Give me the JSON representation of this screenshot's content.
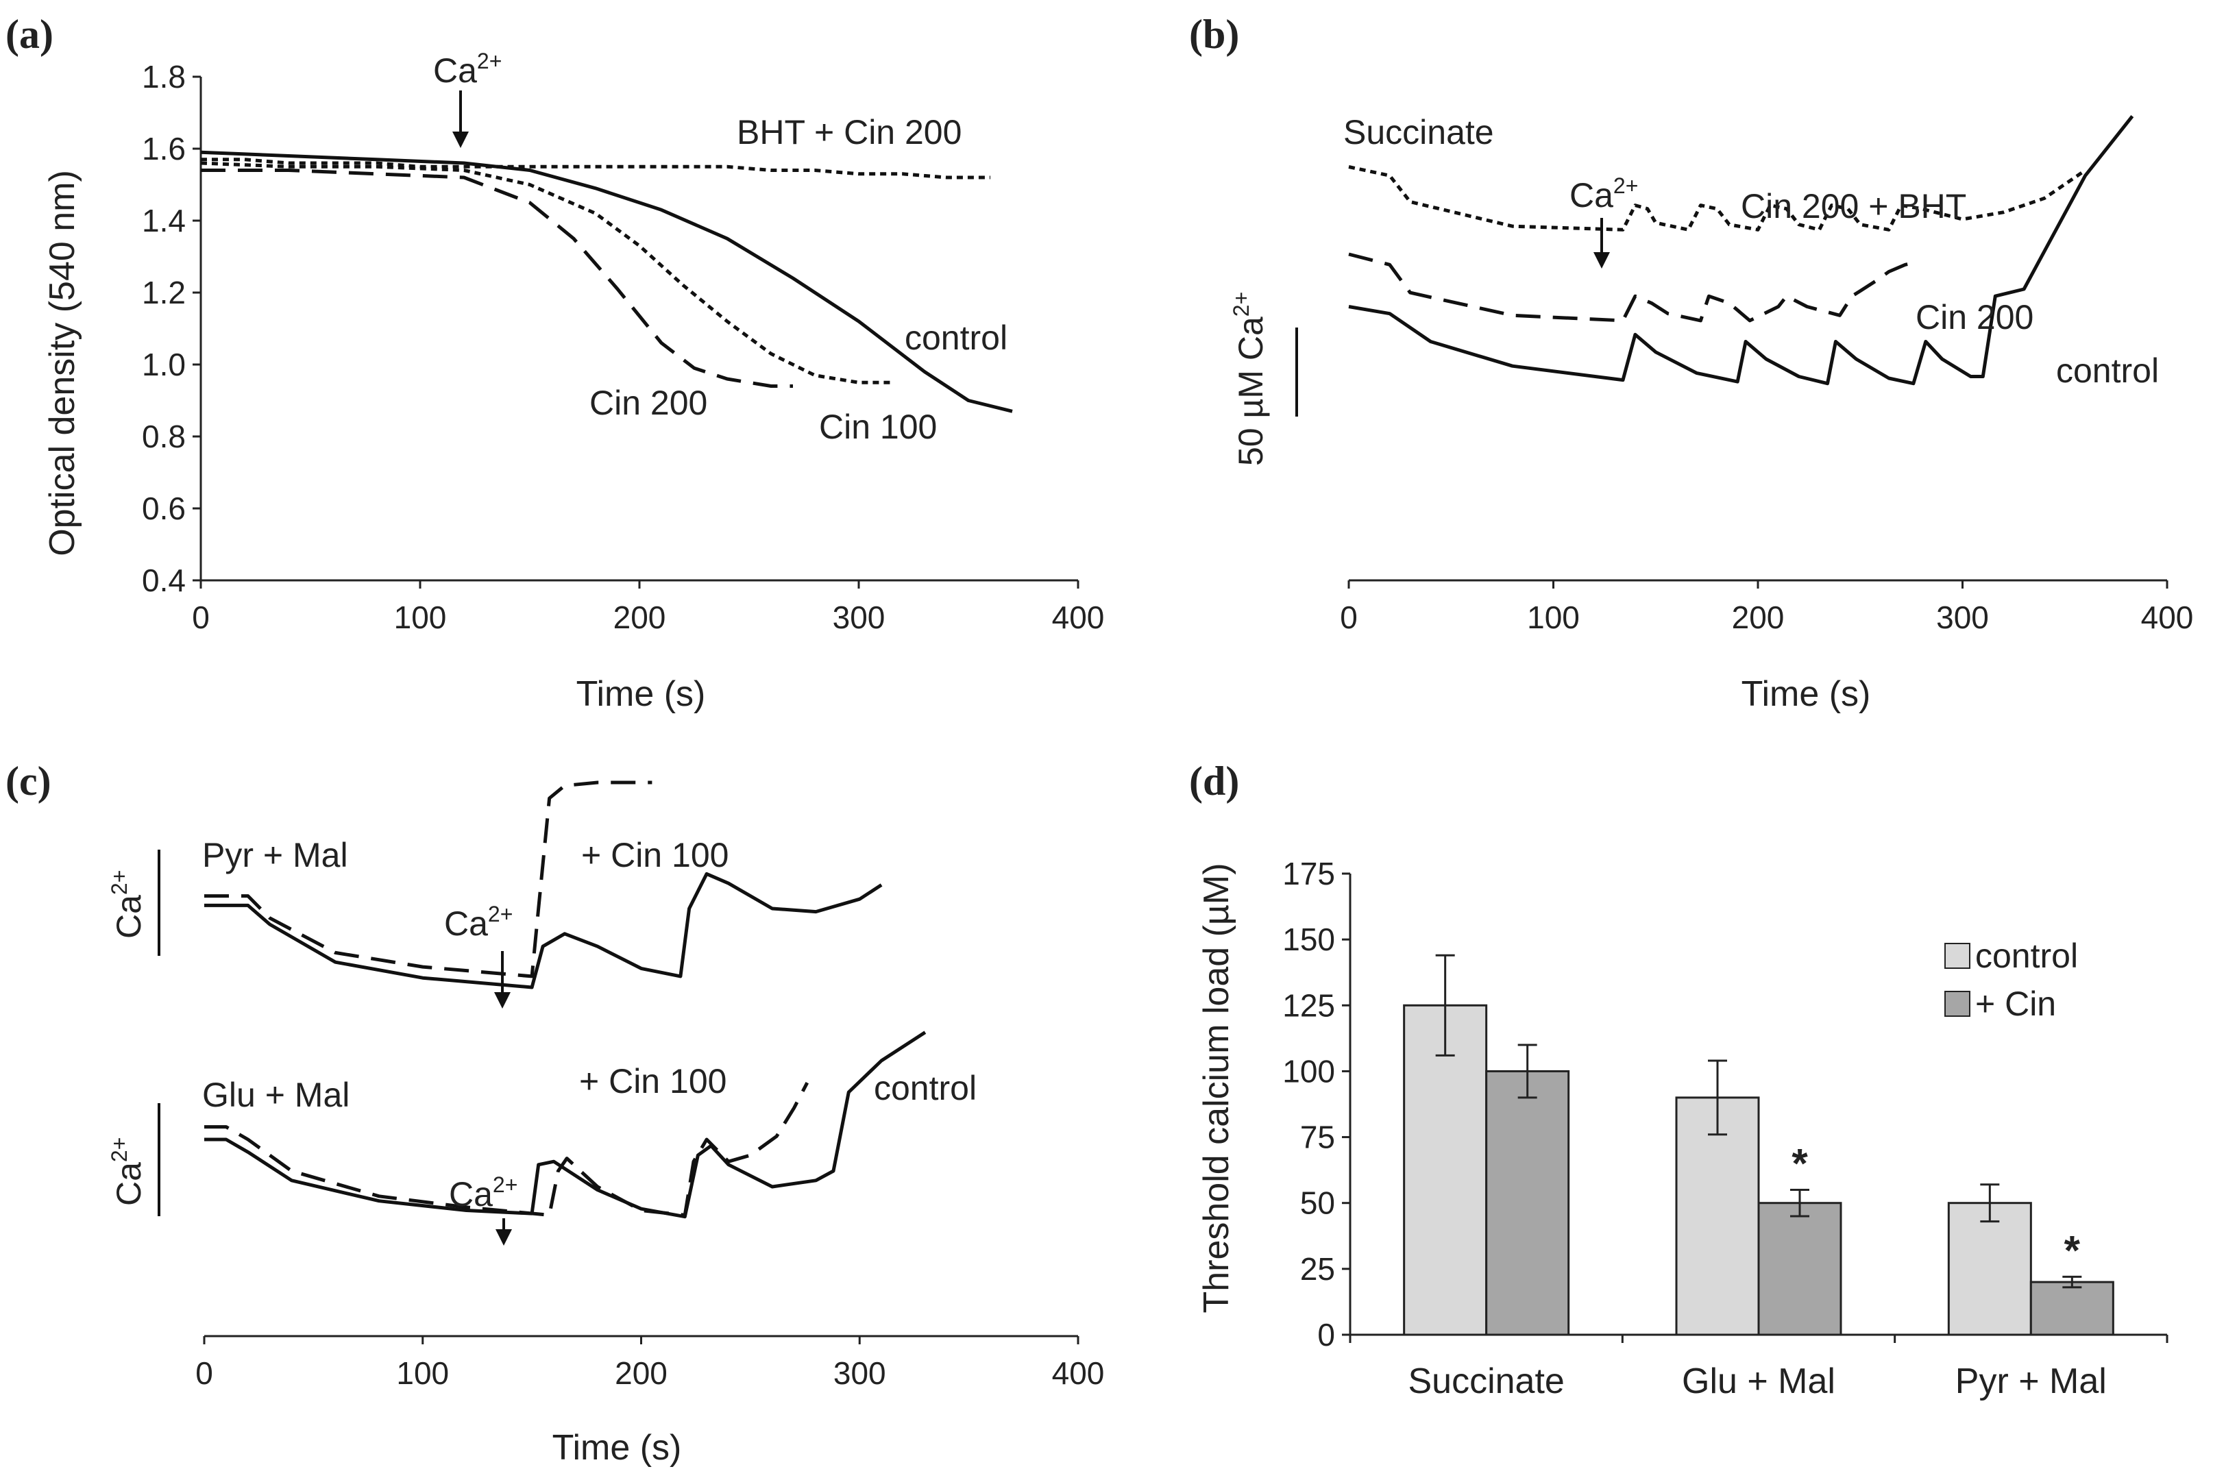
{
  "chart_data": [
    {
      "panel": "(a)",
      "type": "line",
      "xlabel": "Time (s)",
      "ylabel": "Optical density (540 nm)",
      "xlim": [
        0,
        400
      ],
      "ylim": [
        0.4,
        1.8
      ],
      "xticks": [
        "0",
        "100",
        "200",
        "300",
        "400"
      ],
      "yticks": [
        "0.4",
        "0.6",
        "0.8",
        "1.0",
        "1.2",
        "1.4",
        "1.6",
        "1.8"
      ],
      "annotations": {
        "ca": "Ca",
        "ca_sup": "2+"
      },
      "series": [
        {
          "name": "BHT + Cin 200",
          "style": "dotted",
          "x": [
            0,
            20,
            40,
            60,
            80,
            100,
            120,
            140,
            160,
            180,
            200,
            220,
            240,
            260,
            280,
            300,
            320,
            340,
            360
          ],
          "y": [
            1.57,
            1.57,
            1.56,
            1.56,
            1.56,
            1.55,
            1.55,
            1.55,
            1.55,
            1.55,
            1.55,
            1.55,
            1.55,
            1.54,
            1.54,
            1.53,
            1.53,
            1.52,
            1.52
          ]
        },
        {
          "name": "control",
          "style": "solid",
          "x": [
            0,
            40,
            80,
            120,
            150,
            180,
            210,
            240,
            270,
            300,
            330,
            350,
            370
          ],
          "y": [
            1.59,
            1.58,
            1.57,
            1.56,
            1.54,
            1.49,
            1.43,
            1.35,
            1.24,
            1.12,
            0.98,
            0.9,
            0.87
          ]
        },
        {
          "name": "Cin 100",
          "style": "dotted",
          "x": [
            0,
            40,
            80,
            120,
            150,
            180,
            200,
            220,
            240,
            260,
            280,
            300,
            315
          ],
          "y": [
            1.56,
            1.55,
            1.55,
            1.54,
            1.5,
            1.42,
            1.33,
            1.22,
            1.12,
            1.03,
            0.97,
            0.95,
            0.95
          ]
        },
        {
          "name": "Cin 200",
          "style": "dashed",
          "x": [
            0,
            40,
            80,
            120,
            150,
            170,
            190,
            210,
            225,
            240,
            260,
            270
          ],
          "y": [
            1.54,
            1.54,
            1.53,
            1.52,
            1.45,
            1.35,
            1.21,
            1.06,
            0.99,
            0.96,
            0.94,
            0.94
          ]
        }
      ]
    },
    {
      "panel": "(b)",
      "type": "line",
      "xlabel": "Time (s)",
      "xlim": [
        0,
        400
      ],
      "xticks": [
        "0",
        "100",
        "200",
        "300",
        "400"
      ],
      "scale_bar": "50 µM Ca",
      "scale_bar_sup": "2+",
      "ylabel_units": "arbitrary (µM Ca2+, offset traces)",
      "annotations": {
        "substrate": "Succinate",
        "ca": "Ca",
        "ca_sup": "2+"
      },
      "series": [
        {
          "name": "Cin 200 + BHT",
          "style": "dotted",
          "x": [
            0,
            20,
            30,
            80,
            134,
            140,
            146,
            150,
            166,
            172,
            180,
            186,
            200,
            206,
            214,
            220,
            230,
            236,
            244,
            250,
            264,
            270,
            280,
            300,
            320,
            340,
            360
          ],
          "y": [
            170,
            165,
            150,
            136,
            134,
            148,
            146,
            138,
            134,
            148,
            146,
            137,
            134,
            148,
            146,
            137,
            134,
            148,
            146,
            137,
            134,
            148,
            146,
            140,
            144,
            152,
            168
          ]
        },
        {
          "name": "Cin 200",
          "style": "dashed",
          "x": [
            0,
            20,
            30,
            80,
            134,
            140,
            148,
            156,
            172,
            176,
            186,
            196,
            210,
            214,
            224,
            240,
            246,
            250,
            258,
            264,
            272,
            276
          ],
          "y": [
            120,
            114,
            98,
            85,
            82,
            96,
            92,
            86,
            82,
            96,
            92,
            82,
            90,
            96,
            90,
            85,
            96,
            99,
            105,
            110,
            114,
            115
          ]
        },
        {
          "name": "control",
          "style": "solid",
          "x": [
            0,
            20,
            40,
            80,
            134,
            140,
            150,
            170,
            190,
            194,
            204,
            220,
            234,
            238,
            248,
            264,
            276,
            282,
            290,
            304,
            310,
            316,
            330,
            360,
            383
          ],
          "y": [
            90,
            86,
            70,
            56,
            48,
            74,
            64,
            52,
            47,
            70,
            60,
            50,
            46,
            70,
            60,
            49,
            46,
            70,
            60,
            50,
            50,
            96,
            100,
            165,
            199
          ]
        }
      ]
    },
    {
      "panel": "(c)",
      "type": "line",
      "xlabel": "Time (s)",
      "xlim": [
        0,
        400
      ],
      "xticks": [
        "0",
        "100",
        "200",
        "300",
        "400"
      ],
      "ylabel_units": "arbitrary (Ca2+)",
      "top": {
        "substrate": "Pyr + Mal",
        "y_label": "Ca",
        "y_label_sup": "2+",
        "ca": "Ca",
        "ca_sup": "2+",
        "series": [
          {
            "name": "+ Cin 100",
            "style": "dashed",
            "x": [
              0,
              20,
              30,
              60,
              100,
              150,
              153,
              158,
              165,
              180,
              200,
              205
            ],
            "y": [
              88,
              88,
              74,
              52,
              43,
              37,
              80,
              150,
              158,
              160,
              160,
              160
            ]
          },
          {
            "name": "control",
            "style": "solid",
            "x": [
              0,
              20,
              30,
              60,
              100,
              150,
              155,
              165,
              180,
              200,
              218,
              222,
              230,
              240,
              260,
              280,
              300,
              310
            ],
            "y": [
              82,
              82,
              70,
              46,
              36,
              30,
              56,
              64,
              56,
              42,
              37,
              80,
              102,
              96,
              80,
              78,
              86,
              95
            ]
          }
        ]
      },
      "bottom": {
        "substrate": "Glu + Mal",
        "y_label": "Ca",
        "y_label_sup": "2+",
        "ca": "Ca",
        "ca_sup": "2+",
        "series": [
          {
            "name": "+ Cin 100",
            "style": "dashed",
            "x": [
              0,
              10,
              20,
              40,
              80,
              120,
              158,
              162,
              166,
              180,
              200,
              220,
              224,
              230,
              240,
              250,
              262,
              270,
              276
            ],
            "y": [
              98,
              98,
              90,
              70,
              54,
              47,
              42,
              70,
              78,
              60,
              45,
              42,
              76,
              90,
              76,
              80,
              92,
              110,
              126
            ]
          },
          {
            "name": "control",
            "style": "solid",
            "x": [
              0,
              10,
              20,
              40,
              80,
              120,
              150,
              153,
              160,
              180,
              200,
              220,
              226,
              232,
              240,
              260,
              280,
              288,
              295,
              310,
              330
            ],
            "y": [
              90,
              90,
              82,
              64,
              51,
              45,
              43,
              74,
              76,
              58,
              46,
              41,
              80,
              86,
              74,
              60,
              64,
              70,
              120,
              140,
              158
            ]
          }
        ]
      },
      "labels": {
        "control": "control",
        "cin": "+ Cin 100"
      }
    },
    {
      "panel": "(d)",
      "type": "bar",
      "ylabel": "Threshold calcium load (µM)",
      "ylim": [
        0,
        175
      ],
      "yticks": [
        "0",
        "25",
        "50",
        "75",
        "100",
        "125",
        "150",
        "175"
      ],
      "categories": [
        "Succinate",
        "Glu + Mal",
        "Pyr + Mal"
      ],
      "series": [
        {
          "name": "control",
          "color": "#d9d9d9",
          "values": [
            125,
            90,
            50
          ],
          "errors": [
            19,
            14,
            7
          ]
        },
        {
          "name": "+ Cin",
          "color": "#a6a6a6",
          "values": [
            100,
            50,
            20
          ],
          "errors": [
            10,
            5,
            2
          ]
        }
      ],
      "significance": [
        "",
        "*",
        "*"
      ],
      "legend": [
        "control",
        "+ Cin"
      ],
      "legend_position": "top-right"
    }
  ],
  "panel_letters": [
    "(a)",
    "(b)",
    "(c)",
    "(d)"
  ]
}
